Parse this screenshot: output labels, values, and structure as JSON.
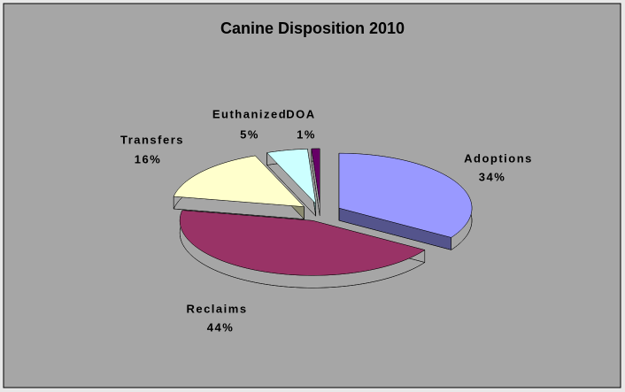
{
  "chart_data": {
    "type": "pie3d",
    "title": "Canine Disposition 2010",
    "categories": [
      "Adoptions",
      "Reclaims",
      "Transfers",
      "Euthanized",
      "DOA"
    ],
    "values": [
      34,
      44,
      16,
      5,
      1
    ],
    "value_labels": [
      "34%",
      "44%",
      "16%",
      "5%",
      "1%"
    ],
    "colors": [
      "#9999ff",
      "#993366",
      "#ffffcc",
      "#ccffff",
      "#660066"
    ]
  }
}
